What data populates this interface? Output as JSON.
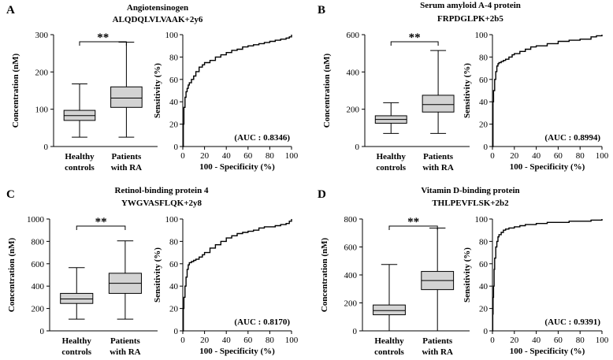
{
  "chart_data": [
    {
      "letter": "A",
      "title": "Angiotensinogen",
      "subtitle": "ALQDQLVLVAAK+2y6",
      "box": {
        "type": "box",
        "ylabel": "Concentration (nM)",
        "ylim": [
          0,
          300
        ],
        "yticks": [
          0,
          100,
          200,
          300
        ],
        "categories": [
          [
            "Healthy",
            "controls"
          ],
          [
            "Patients",
            "with RA"
          ]
        ],
        "groups": [
          {
            "min": 25,
            "q1": 70,
            "median": 83,
            "q3": 97,
            "max": 168
          },
          {
            "min": 25,
            "q1": 105,
            "median": 130,
            "q3": 160,
            "max": 280
          }
        ],
        "significance": "**"
      },
      "roc": {
        "type": "line",
        "xlabel": "100 - Specificity (%)",
        "ylabel": "Sensitivity (%)",
        "xlim": [
          0,
          100
        ],
        "ylim": [
          0,
          100
        ],
        "ticks": [
          0,
          20,
          40,
          60,
          80,
          100
        ],
        "auc_label": "(AUC : 0.8346)",
        "x": [
          0,
          0.5,
          1,
          2,
          3,
          4,
          5,
          6,
          8,
          10,
          12,
          15,
          18,
          20,
          25,
          30,
          35,
          40,
          45,
          50,
          55,
          60,
          65,
          70,
          75,
          80,
          85,
          90,
          95,
          98,
          100
        ],
        "y": [
          0,
          20,
          35,
          44,
          49,
          52,
          55,
          57,
          60,
          63,
          67,
          71,
          73,
          75,
          77,
          80,
          82,
          84,
          86,
          87,
          89,
          90,
          91,
          92,
          93,
          94,
          95,
          96,
          97,
          98,
          100
        ]
      }
    },
    {
      "letter": "B",
      "title": "Serum amyloid A-4 protein",
      "subtitle": "FRPDGLPK+2b5",
      "box": {
        "type": "box",
        "ylabel": "Concentration (nM)",
        "ylim": [
          0,
          600
        ],
        "yticks": [
          0,
          200,
          400,
          600
        ],
        "categories": [
          [
            "Healthy",
            "controls"
          ],
          [
            "Patients",
            "with RA"
          ]
        ],
        "groups": [
          {
            "min": 70,
            "q1": 125,
            "median": 145,
            "q3": 165,
            "max": 235
          },
          {
            "min": 70,
            "q1": 185,
            "median": 225,
            "q3": 275,
            "max": 515
          }
        ],
        "significance": "**"
      },
      "roc": {
        "type": "line",
        "xlabel": "100 - Specificity (%)",
        "ylabel": "Sensitivity (%)",
        "xlim": [
          0,
          100
        ],
        "ylim": [
          0,
          100
        ],
        "ticks": [
          0,
          20,
          40,
          60,
          80,
          100
        ],
        "auc_label": "(AUC : 0.8994)",
        "x": [
          0,
          0.5,
          1,
          2,
          3,
          4,
          5,
          6,
          8,
          10,
          12,
          15,
          18,
          20,
          25,
          30,
          35,
          40,
          50,
          60,
          70,
          80,
          90,
          95,
          100
        ],
        "y": [
          0,
          40,
          50,
          60,
          67,
          72,
          74,
          75,
          76,
          77,
          78,
          80,
          82,
          83,
          85,
          87,
          89,
          90,
          92,
          94,
          95,
          96,
          98,
          99,
          100
        ]
      }
    },
    {
      "letter": "C",
      "title": "Retinol-binding protein 4",
      "subtitle": "YWGVASFLQK+2y8",
      "box": {
        "type": "box",
        "ylabel": "Concentration (nM)",
        "ylim": [
          0,
          1000
        ],
        "yticks": [
          0,
          200,
          400,
          600,
          800,
          1000
        ],
        "categories": [
          [
            "Healthy",
            "controls"
          ],
          [
            "Patients",
            "with RA"
          ]
        ],
        "groups": [
          {
            "min": 105,
            "q1": 245,
            "median": 285,
            "q3": 335,
            "max": 565
          },
          {
            "min": 105,
            "q1": 335,
            "median": 425,
            "q3": 515,
            "max": 805
          }
        ],
        "significance": "**"
      },
      "roc": {
        "type": "line",
        "xlabel": "100 - Specificity (%)",
        "ylabel": "Sensitivity (%)",
        "xlim": [
          0,
          100
        ],
        "ylim": [
          0,
          100
        ],
        "ticks": [
          0,
          20,
          40,
          60,
          80,
          100
        ],
        "auc_label": "(AUC : 0.8170)",
        "x": [
          0,
          0.5,
          1,
          2,
          3,
          4,
          5,
          6,
          8,
          10,
          12,
          15,
          18,
          20,
          25,
          30,
          35,
          40,
          45,
          50,
          55,
          60,
          65,
          70,
          75,
          80,
          85,
          90,
          95,
          98,
          100
        ],
        "y": [
          0,
          20,
          30,
          40,
          48,
          55,
          59,
          61,
          62,
          63,
          64,
          66,
          68,
          70,
          74,
          77,
          80,
          83,
          85,
          87,
          88,
          89,
          90,
          92,
          93,
          93,
          94,
          95,
          96,
          98,
          100
        ]
      }
    },
    {
      "letter": "D",
      "title": "Vitamin D-binding protein",
      "subtitle": "THLPEVFLSK+2b2",
      "box": {
        "type": "box",
        "ylabel": "Concentration (nM)",
        "ylim": [
          0,
          800
        ],
        "yticks": [
          0,
          200,
          400,
          600,
          800
        ],
        "categories": [
          [
            "Healthy",
            "controls"
          ],
          [
            "Patients",
            "with RA"
          ]
        ],
        "groups": [
          {
            "min": 0,
            "q1": 115,
            "median": 145,
            "q3": 185,
            "max": 475
          },
          {
            "min": 0,
            "q1": 295,
            "median": 360,
            "q3": 425,
            "max": 735
          }
        ],
        "significance": "**"
      },
      "roc": {
        "type": "line",
        "xlabel": "100 - Specificity (%)",
        "ylabel": "Sensitivity (%)",
        "xlim": [
          0,
          100
        ],
        "ylim": [
          0,
          100
        ],
        "ticks": [
          0,
          20,
          40,
          60,
          80,
          100
        ],
        "auc_label": "(AUC : 0.9391)",
        "x": [
          0,
          0.3,
          0.6,
          1,
          1.5,
          2,
          3,
          4,
          5,
          6,
          8,
          10,
          12,
          15,
          20,
          25,
          30,
          40,
          50,
          60,
          70,
          80,
          90,
          100
        ],
        "y": [
          0,
          15,
          30,
          40,
          55,
          65,
          75,
          80,
          84,
          86,
          88,
          90,
          91,
          92,
          93,
          94,
          95,
          96,
          97,
          97,
          98,
          98,
          99,
          100
        ]
      }
    }
  ]
}
